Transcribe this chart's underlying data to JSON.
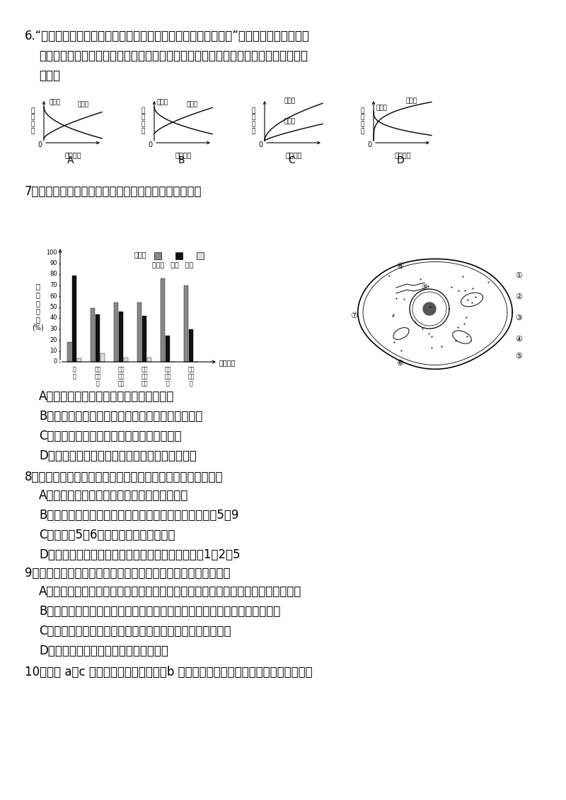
{
  "bg_color": "#ffffff",
  "text_color": "#000000",
  "q6_line1": "6.“绵绵的春雨，是她润醒了小草，润绿了杨树，润开了报春花。”小草被润醒了、杨树被",
  "q6_line2": "润绿了、报春花被润开了的过程中细胞中自由水与结合水的相对含量变化，如图表示正",
  "q6_line3": "确的是",
  "q7_text": "7．如图表示各种膜的组成成分含量，该图不能说明的是",
  "q7A": "A．构成细胞膜的主要成分是蛋白质和脂质",
  "q7B": "B．膜中的脂质和蛋白质含量的变化与膜的功能有关",
  "q7C": "C．膜的功能越简单，所含蛋白质的数量越少",
  "q7D": "D．膜的功能越复杂，所含糖类的种类和数量越多",
  "q8_text": "8．如图为细胞亚显微结构示意图，下列有关说法中不正确的是",
  "q8A": "A．此图可用来表示低等植物细胞的亚显微结构",
  "q8B": "B．若此图表示洋葱根尖分生区细胞，则应去掉的结构为5、9",
  "q8C": "C．图中的5、6能利用尿嘘呀核糖核苷酸",
  "q8D": "D．此图若表示动物的性腺细胞，则不应有的结构为1、2、5",
  "q9_text": "9．下列有关用高倍镜观察线粒体和叶绿体的实验说法不正确的是",
  "q9A": "A．健那绿染液是专一性染线粒体的活细胞染料，可以使活细胞中线粒体呈现蓝绿色",
  "q9B": "B．观察叶绿体时选用蕨类的叶或黑藻的叶，原因是叶片薄而小，叶绿体清楚",
  "q9C": "C．用菠菜叶作实验材料，要取菠菜叶的下表皮并稍带些叶肉",
  "q9D": "D．可用高倍镜直接观察叶绿体和线粒体",
  "q10_text": "10．右图 a、c 表示细胞中的两种结构，b 是它们共有的特征。下列有关叙述正确的是",
  "bar_groups": [
    {
      "name": "髓\n鞘",
      "protein": 18,
      "lipid": 79,
      "sugar": 3
    },
    {
      "name": "人红\n细胞\n膜",
      "protein": 49,
      "lipid": 43,
      "sugar": 8
    },
    {
      "name": "小鼠\n肝脏\n胆膜",
      "protein": 54,
      "lipid": 46,
      "sugar": 4
    },
    {
      "name": "变形\n虫细\n胞膜",
      "protein": 54,
      "lipid": 42,
      "sugar": 4
    },
    {
      "name": "线粒\n体内\n膜",
      "protein": 76,
      "lipid": 24,
      "sugar": 0
    },
    {
      "name": "叶绿\n体片\n层",
      "protein": 70,
      "lipid": 30,
      "sugar": 0
    }
  ]
}
